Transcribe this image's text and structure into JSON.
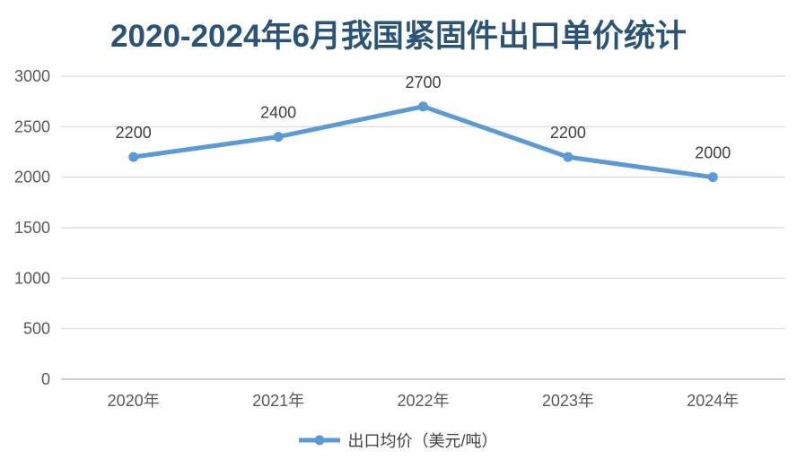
{
  "chart_data": {
    "type": "line",
    "title": "2020-2024年6月我国紧固件出口单价统计",
    "categories": [
      "2020年",
      "2021年",
      "2022年",
      "2023年",
      "2024年"
    ],
    "series": [
      {
        "name": "出口均价（美元/吨）",
        "values": [
          2200,
          2400,
          2700,
          2200,
          2000
        ]
      }
    ],
    "data_labels": [
      "2200",
      "2400",
      "2700",
      "2200",
      "2000"
    ],
    "yticks": [
      "3000",
      "2500",
      "2000",
      "1500",
      "1000",
      "500",
      "0"
    ],
    "ytick_values": [
      3000,
      2500,
      2000,
      1500,
      1000,
      500,
      0
    ],
    "ylim": [
      0,
      3000
    ],
    "grid": "horizontal",
    "legend_position": "bottom"
  },
  "colors": {
    "series_line": "#5B9BD5",
    "title_text": "#2A5378",
    "axis_text": "#595959",
    "data_label_text": "#404040",
    "gridline": "#D9D9D9",
    "axis_line": "#BFBFBF",
    "background": "#FFFFFF"
  }
}
